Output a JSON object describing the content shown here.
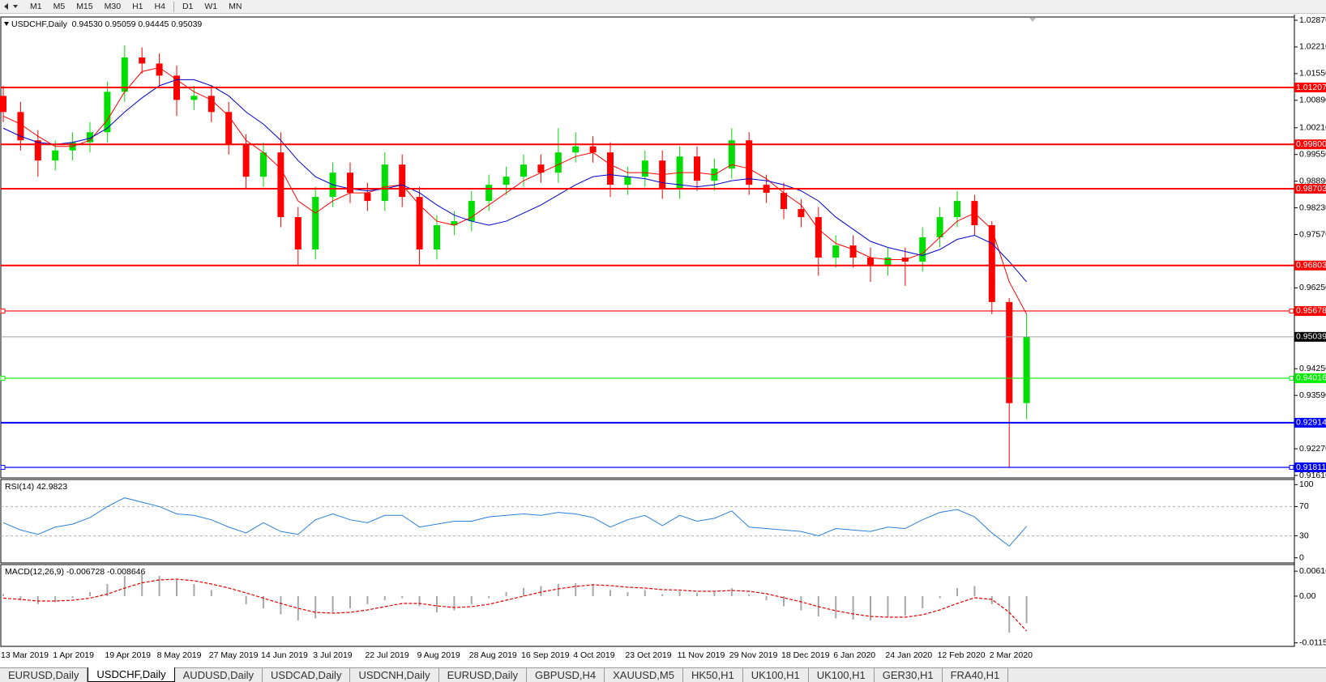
{
  "toolbar": [
    "M1",
    "M5",
    "M15",
    "M30",
    "H1",
    "H4",
    "D1",
    "W1",
    "MN"
  ],
  "tabs": [
    "EURUSD,Daily",
    "USDCHF,Daily",
    "AUDUSD,Daily",
    "USDCAD,Daily",
    "USDCNH,Daily",
    "EURUSD,Daily",
    "GBPUSD,H4",
    "XAUUSD,M5",
    "HK50,H1",
    "UK100,H1",
    "UK100,H1",
    "GER30,H1",
    "FRA40,H1"
  ],
  "active_tab": 1,
  "chart_data": [
    {
      "type": "candlestick",
      "title": "USDCHF,Daily  0.94530 0.95059 0.94445 0.95039",
      "categories": [
        "13 Mar 2019",
        null,
        null,
        "1 Apr 2019",
        null,
        null,
        "19 Apr 2019",
        null,
        null,
        "8 May 2019",
        null,
        null,
        "27 May 2019",
        null,
        null,
        "14 Jun 2019",
        null,
        null,
        "3 Jul 2019",
        null,
        null,
        "22 Jul 2019",
        null,
        null,
        "9 Aug 2019",
        null,
        null,
        "28 Aug 2019",
        null,
        null,
        "16 Sep 2019",
        null,
        null,
        "4 Oct 2019",
        null,
        null,
        "23 Oct 2019",
        null,
        null,
        "11 Nov 2019",
        null,
        null,
        "29 Nov 2019",
        null,
        null,
        "18 Dec 2019",
        null,
        null,
        "6 Jan 2020",
        null,
        null,
        "24 Jan 2020",
        null,
        null,
        "12 Feb 2020",
        null,
        null,
        "2 Mar 2020",
        null,
        null
      ],
      "open": [
        1.01,
        1.006,
        0.999,
        0.994,
        0.9965,
        0.9985,
        1.001,
        1.011,
        1.0195,
        1.018,
        1.015,
        1.009,
        1.01,
        1.006,
        0.998,
        0.99,
        0.996,
        0.98,
        0.972,
        0.985,
        0.991,
        0.986,
        0.984,
        0.993,
        0.985,
        0.972,
        0.978,
        0.979,
        0.984,
        0.988,
        0.99,
        0.993,
        0.991,
        0.996,
        0.9975,
        0.996,
        0.988,
        0.99,
        0.994,
        0.987,
        0.995,
        0.989,
        0.992,
        0.999,
        0.988,
        0.986,
        0.982,
        0.98,
        0.97,
        0.973,
        0.97,
        0.968,
        0.97,
        0.969,
        0.975,
        0.98,
        0.984,
        0.978,
        0.959,
        0.934
      ],
      "high": [
        1.0125,
        1.0085,
        1.0015,
        0.999,
        1.001,
        1.0035,
        1.0135,
        1.0225,
        1.022,
        1.0205,
        1.0175,
        1.0125,
        1.0125,
        1.0085,
        1.0005,
        0.9985,
        1.001,
        0.9825,
        0.9875,
        0.9935,
        0.9935,
        0.9885,
        0.996,
        0.9955,
        0.9875,
        0.9805,
        0.9815,
        0.9865,
        0.9905,
        0.9925,
        0.9955,
        0.9955,
        1.002,
        1.001,
        1.0,
        0.9985,
        0.9925,
        0.9965,
        0.9965,
        0.9975,
        0.9975,
        0.9945,
        1.002,
        1.001,
        0.9905,
        0.9885,
        0.9845,
        0.9825,
        0.9755,
        0.9755,
        0.9725,
        0.9725,
        0.9725,
        0.9775,
        0.9825,
        0.9865,
        0.9855,
        0.979,
        0.96,
        0.956
      ],
      "low": [
        1.0035,
        0.9965,
        0.99,
        0.9915,
        0.994,
        0.996,
        0.9985,
        1.0085,
        1.0155,
        1.0125,
        1.005,
        1.0065,
        1.0035,
        0.9955,
        0.987,
        0.9875,
        0.9775,
        0.968,
        0.9695,
        0.9825,
        0.9835,
        0.9815,
        0.9815,
        0.9825,
        0.968,
        0.9695,
        0.9755,
        0.9765,
        0.9815,
        0.9855,
        0.9875,
        0.9885,
        0.9885,
        0.9935,
        0.9935,
        0.985,
        0.9855,
        0.9875,
        0.9845,
        0.9845,
        0.9865,
        0.9865,
        0.9895,
        0.9855,
        0.9835,
        0.9795,
        0.9775,
        0.9655,
        0.9675,
        0.9675,
        0.964,
        0.9655,
        0.963,
        0.9665,
        0.9725,
        0.9775,
        0.9755,
        0.956,
        0.9181,
        0.93
      ],
      "close": [
        1.006,
        0.999,
        0.994,
        0.9965,
        0.9985,
        1.001,
        1.011,
        1.0195,
        1.018,
        1.015,
        1.009,
        1.01,
        1.006,
        0.998,
        0.99,
        0.996,
        0.98,
        0.972,
        0.985,
        0.991,
        0.986,
        0.984,
        0.993,
        0.985,
        0.972,
        0.978,
        0.979,
        0.984,
        0.988,
        0.99,
        0.993,
        0.991,
        0.996,
        0.9975,
        0.996,
        0.988,
        0.99,
        0.994,
        0.987,
        0.995,
        0.989,
        0.992,
        0.999,
        0.988,
        0.986,
        0.982,
        0.98,
        0.97,
        0.973,
        0.97,
        0.968,
        0.97,
        0.969,
        0.975,
        0.98,
        0.984,
        0.978,
        0.959,
        0.934,
        0.9504
      ],
      "up_color": "#00dd00",
      "down_color": "#ff0000",
      "overlays": [
        {
          "color": "#ff0000",
          "values": [
            1.005,
            1.003,
            1.0,
            0.9975,
            0.9975,
            0.999,
            1.004,
            1.011,
            1.016,
            1.017,
            1.014,
            1.011,
            1.009,
            1.005,
            0.999,
            0.996,
            0.992,
            0.984,
            0.981,
            0.984,
            0.986,
            0.986,
            0.9875,
            0.988,
            0.983,
            0.979,
            0.978,
            0.98,
            0.983,
            0.986,
            0.989,
            0.991,
            0.993,
            0.995,
            0.996,
            0.993,
            0.991,
            0.991,
            0.9905,
            0.991,
            0.991,
            0.9905,
            0.993,
            0.992,
            0.9895,
            0.986,
            0.983,
            0.977,
            0.9735,
            0.972,
            0.97,
            0.9695,
            0.9695,
            0.971,
            0.975,
            0.979,
            0.981,
            0.977,
            0.964,
            0.956
          ]
        },
        {
          "color": "#0000cc",
          "values": [
            1.002,
            1.0,
            0.9985,
            0.998,
            0.9985,
            0.9995,
            1.002,
            1.006,
            1.0095,
            1.0125,
            1.014,
            1.014,
            1.0125,
            1.01,
            1.006,
            1.003,
            0.999,
            0.994,
            0.99,
            0.988,
            0.987,
            0.9865,
            0.987,
            0.988,
            0.986,
            0.983,
            0.9805,
            0.979,
            0.978,
            0.979,
            0.981,
            0.983,
            0.9855,
            0.988,
            0.99,
            0.9905,
            0.99,
            0.9895,
            0.9885,
            0.988,
            0.9875,
            0.988,
            0.989,
            0.9895,
            0.989,
            0.988,
            0.9865,
            0.984,
            0.98,
            0.977,
            0.974,
            0.9725,
            0.9715,
            0.9705,
            0.972,
            0.9745,
            0.9755,
            0.9735,
            0.969,
            0.964
          ]
        }
      ],
      "levels": [
        {
          "value": 1.01207,
          "label": "1.01207",
          "color": "#ff0000",
          "markers": false
        },
        {
          "value": 0.998,
          "label": "0.99800",
          "color": "#ff0000",
          "markers": false
        },
        {
          "value": 0.98703,
          "label": "0.98703",
          "color": "#ff0000",
          "markers": false
        },
        {
          "value": 0.96803,
          "label": "0.96803",
          "color": "#ff0000",
          "markers": false
        },
        {
          "value": 0.95678,
          "label": "0.95678",
          "color": "#ff0000",
          "markers": true
        },
        {
          "value": 0.94016,
          "label": "0.94016",
          "color": "#00ee00",
          "markers": true
        },
        {
          "value": 0.92914,
          "label": "0.92914",
          "color": "#0000ff",
          "markers": false
        },
        {
          "value": 0.91811,
          "label": "0.91811",
          "color": "#0000ff",
          "markers": true
        }
      ],
      "current": {
        "value": 0.95039,
        "label": "0.95039"
      },
      "ylim": [
        0.9155,
        1.0295
      ],
      "yticks": [
        {
          "value": 1.0287,
          "label": "1.02870"
        },
        {
          "value": 1.0221,
          "label": "1.02210"
        },
        {
          "value": 1.0155,
          "label": "1.01550"
        },
        {
          "value": 1.0089,
          "label": "1.00890"
        },
        {
          "value": 1.0021,
          "label": "1.00210"
        },
        {
          "value": 0.9955,
          "label": "0.99550"
        },
        {
          "value": 0.9889,
          "label": "0.98890"
        },
        {
          "value": 0.9823,
          "label": "0.98230"
        },
        {
          "value": 0.9757,
          "label": "0.97570"
        },
        {
          "value": 0.9625,
          "label": "0.96250"
        },
        {
          "value": 0.9425,
          "label": "0.94250"
        },
        {
          "value": 0.9359,
          "label": "0.93590"
        },
        {
          "value": 0.9227,
          "label": "0.92270"
        },
        {
          "value": 0.9161,
          "label": "0.91610"
        }
      ]
    },
    {
      "type": "line",
      "title": "RSI(14) 42.9823",
      "color": "#2b7fd9",
      "values": [
        48,
        38,
        32,
        42,
        46,
        55,
        70,
        82,
        76,
        70,
        60,
        58,
        52,
        42,
        34,
        48,
        36,
        32,
        52,
        60,
        52,
        48,
        58,
        58,
        42,
        46,
        50,
        50,
        56,
        58,
        60,
        58,
        62,
        60,
        55,
        42,
        52,
        58,
        44,
        58,
        50,
        54,
        64,
        42,
        40,
        38,
        36,
        30,
        40,
        38,
        36,
        42,
        40,
        52,
        62,
        66,
        56,
        34,
        16,
        43
      ],
      "levels": [
        70,
        30
      ],
      "ylim": [
        -7,
        107
      ],
      "yticks": [
        100,
        70,
        30,
        0
      ]
    },
    {
      "type": "macd",
      "title": "MACD(12,26,9) -0.006728 -0.008646",
      "hist_color": "#a8a8a8",
      "signal_color": "#e00000",
      "histogram": [
        0.0005,
        -0.001,
        -0.002,
        -0.0015,
        -0.0005,
        0.001,
        0.003,
        0.005,
        0.0055,
        0.005,
        0.004,
        0.003,
        0.0015,
        0.0,
        -0.002,
        -0.003,
        -0.0045,
        -0.006,
        -0.0055,
        -0.004,
        -0.003,
        -0.002,
        -0.001,
        -0.0005,
        -0.0025,
        -0.004,
        -0.0035,
        -0.002,
        -0.0005,
        0.001,
        0.002,
        0.0025,
        0.003,
        0.0032,
        0.003,
        0.0015,
        0.001,
        0.0015,
        0.0005,
        0.0012,
        0.0008,
        0.001,
        0.002,
        0.0005,
        -0.001,
        -0.0025,
        -0.0035,
        -0.005,
        -0.0055,
        -0.0058,
        -0.006,
        -0.0052,
        -0.0048,
        -0.003,
        -0.0005,
        0.002,
        0.0025,
        -0.002,
        -0.009,
        -0.0067
      ],
      "signal": [
        -0.0005,
        -0.0008,
        -0.0012,
        -0.0012,
        -0.001,
        -0.0005,
        0.0005,
        0.002,
        0.0033,
        0.004,
        0.0042,
        0.0038,
        0.003,
        0.002,
        0.0008,
        -0.0005,
        -0.0018,
        -0.003,
        -0.004,
        -0.0042,
        -0.004,
        -0.0034,
        -0.0026,
        -0.0018,
        -0.0018,
        -0.0024,
        -0.0028,
        -0.0026,
        -0.002,
        -0.001,
        0.0,
        0.001,
        0.0018,
        0.0024,
        0.0028,
        0.0026,
        0.0022,
        0.002,
        0.0016,
        0.0015,
        0.0012,
        0.0012,
        0.0014,
        0.0012,
        0.0006,
        -0.0004,
        -0.0014,
        -0.0026,
        -0.0036,
        -0.0044,
        -0.005,
        -0.0052,
        -0.0052,
        -0.0046,
        -0.0034,
        -0.0018,
        -0.0004,
        -0.0008,
        -0.004,
        -0.0086
      ],
      "ylim": [
        -0.0124,
        0.0078
      ],
      "yticks": [
        0.006167,
        {
          "value": 0,
          "label": "0.00"
        },
        -0.011535
      ]
    }
  ]
}
